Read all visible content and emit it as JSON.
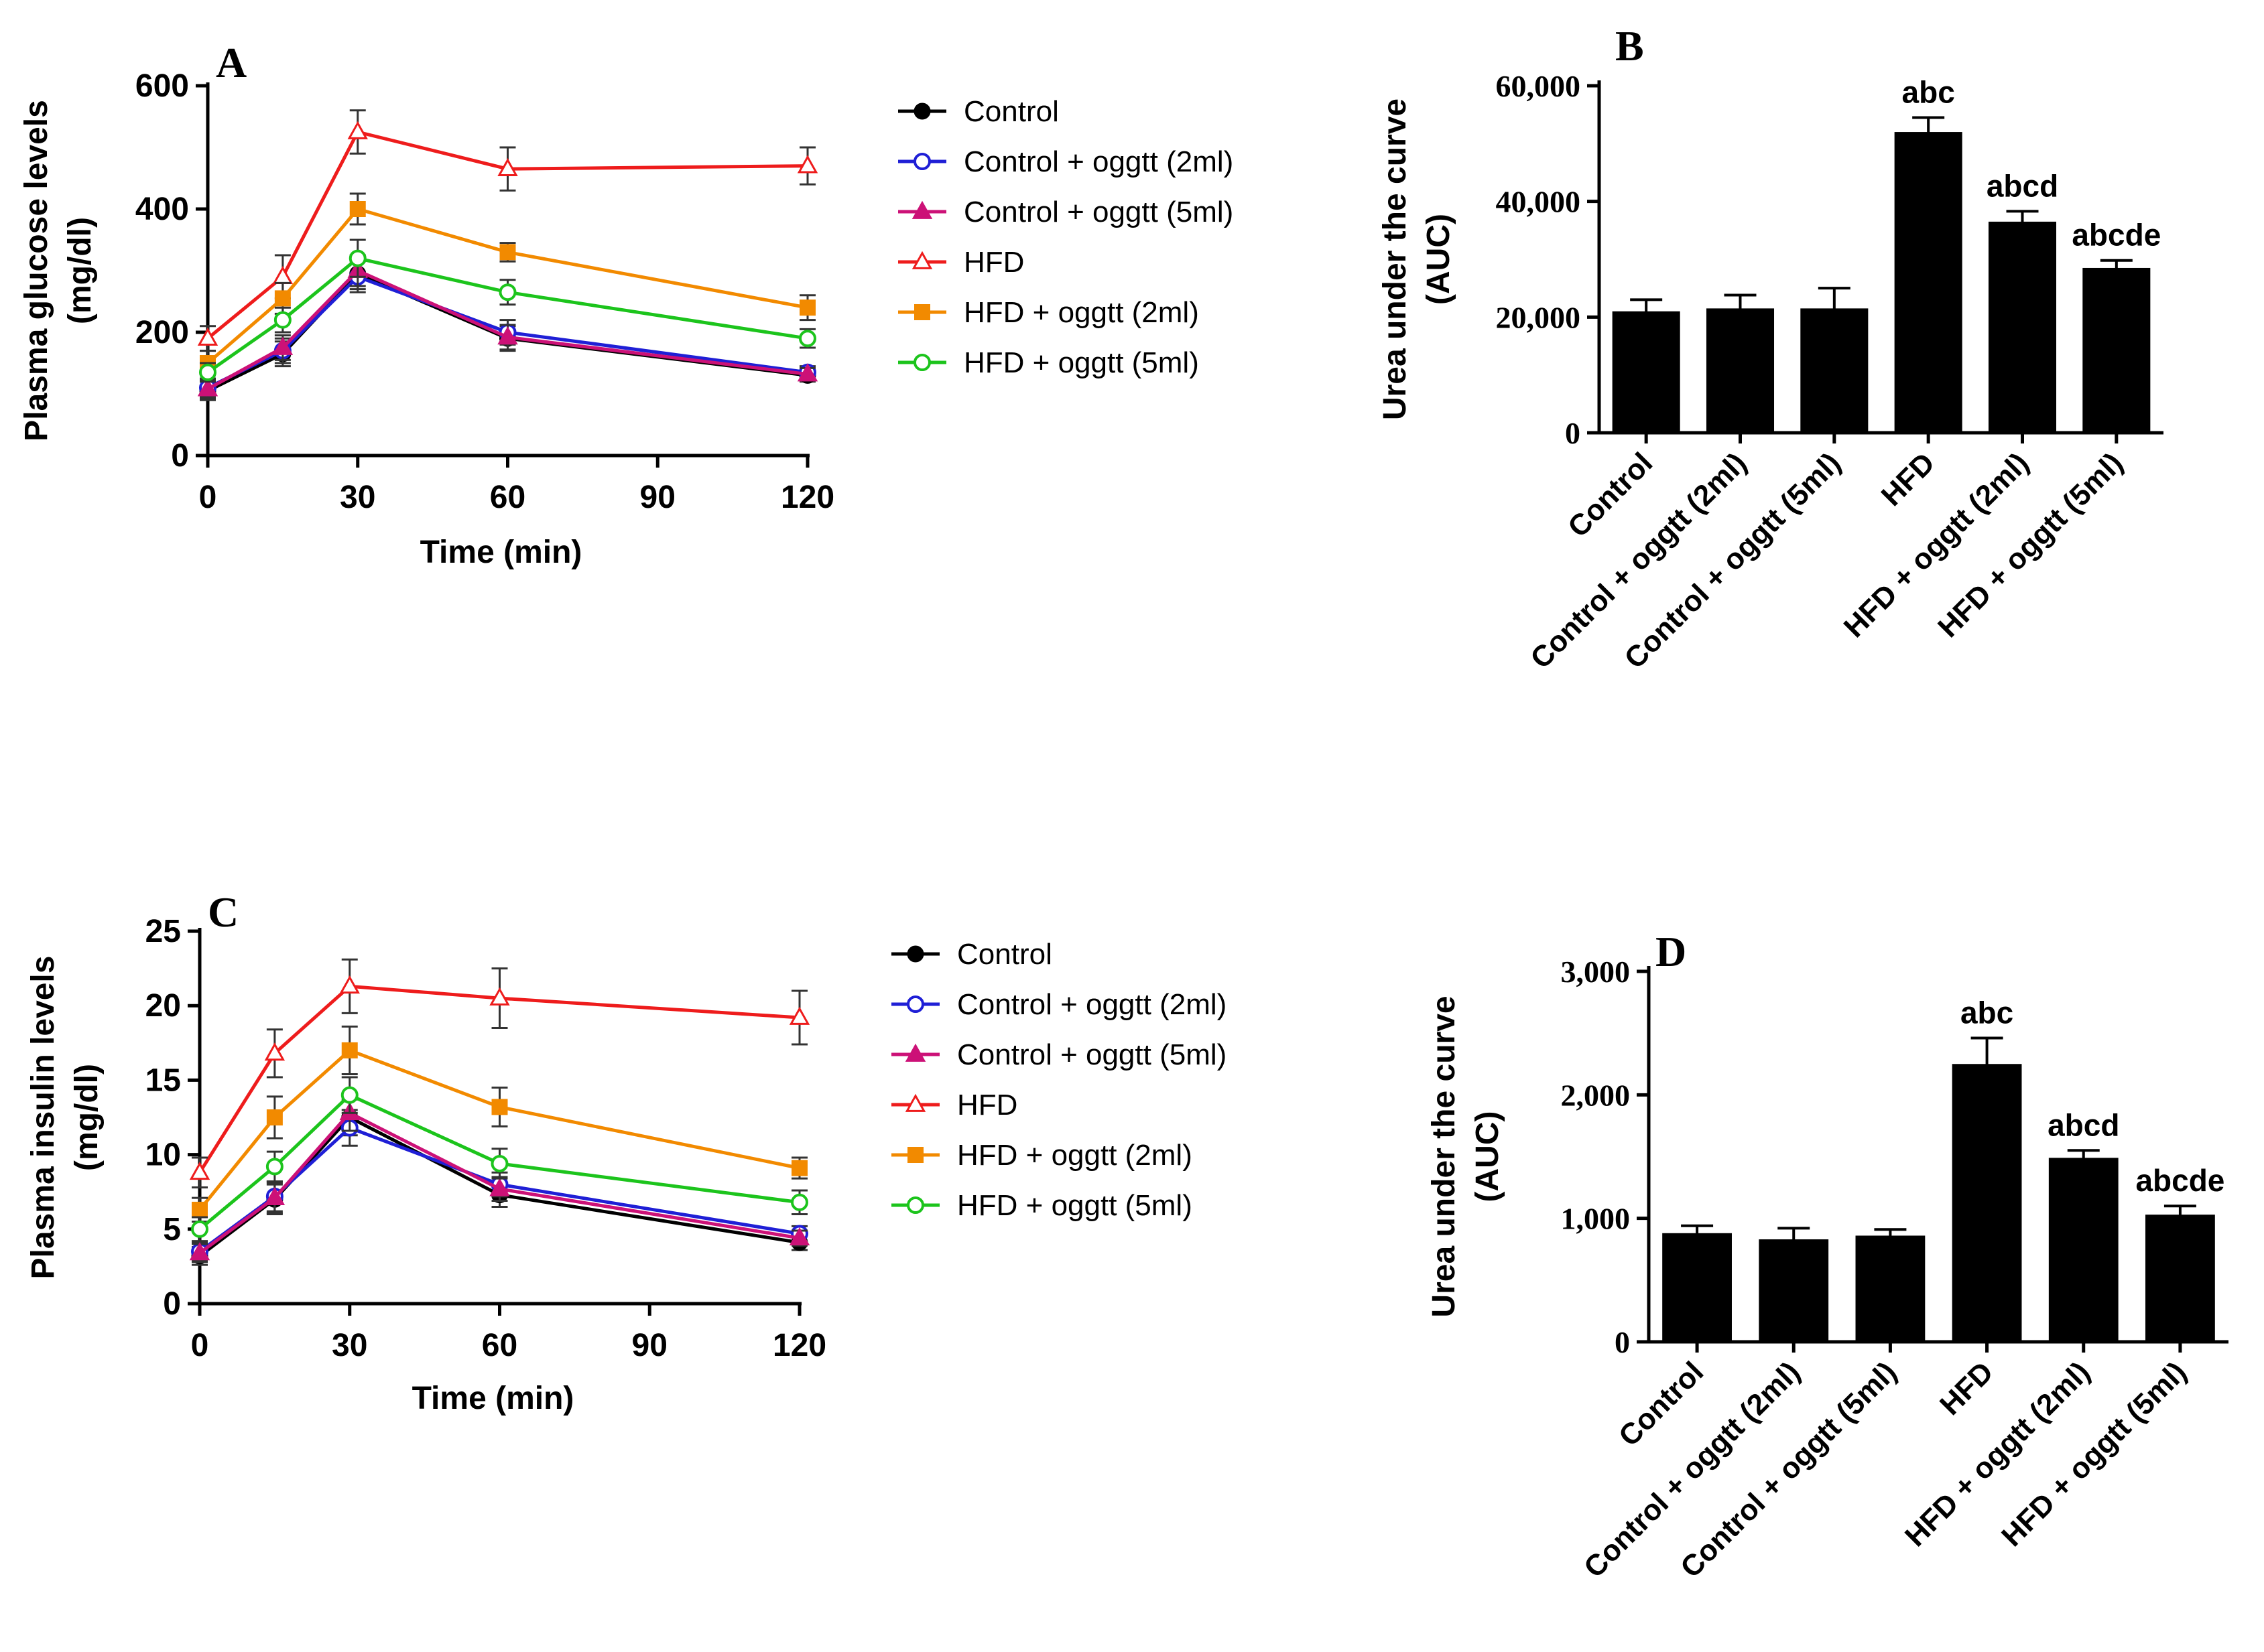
{
  "figure": {
    "background": "#ffffff"
  },
  "chart_data": [
    {
      "id": "A",
      "type": "line",
      "panel_label": "A",
      "title": "",
      "xlabel": "Time (min)",
      "ylabel_lines": [
        "Plasma  glucose levels",
        "(mg/dl)"
      ],
      "xlim": [
        0,
        120
      ],
      "ylim": [
        0,
        600
      ],
      "xticks": [
        0,
        30,
        60,
        90,
        120
      ],
      "yticks": [
        0,
        200,
        400,
        600
      ],
      "legend_position": "right",
      "x": [
        0,
        15,
        30,
        60,
        120
      ],
      "series": [
        {
          "name": "Control",
          "color": "#000000",
          "marker": "circle-filled",
          "values": [
            105,
            165,
            295,
            190,
            130
          ],
          "errors": [
            15,
            20,
            25,
            20,
            10
          ]
        },
        {
          "name": "Control + oggtt (2ml)",
          "color": "#1f1fd6",
          "marker": "circle-open",
          "values": [
            110,
            170,
            290,
            200,
            135
          ],
          "errors": [
            15,
            20,
            25,
            20,
            10
          ]
        },
        {
          "name": "Control + oggtt (5ml)",
          "color": "#cc1177",
          "marker": "triangle-filled",
          "values": [
            108,
            175,
            300,
            192,
            132
          ],
          "errors": [
            15,
            20,
            25,
            20,
            10
          ]
        },
        {
          "name": "HFD",
          "color": "#ee1c1c",
          "marker": "triangle-open",
          "values": [
            190,
            290,
            525,
            465,
            470
          ],
          "errors": [
            20,
            35,
            35,
            35,
            30
          ]
        },
        {
          "name": "HFD + oggtt (2ml)",
          "color": "#f28a00",
          "marker": "square-filled",
          "values": [
            150,
            255,
            400,
            330,
            240
          ],
          "errors": [
            20,
            25,
            25,
            15,
            20
          ]
        },
        {
          "name": "HFD + oggtt (5ml)",
          "color": "#1cc41c",
          "marker": "circle-open",
          "values": [
            135,
            220,
            320,
            265,
            190
          ],
          "errors": [
            15,
            20,
            30,
            20,
            15
          ]
        }
      ]
    },
    {
      "id": "B",
      "type": "bar",
      "panel_label": "B",
      "title": "",
      "xlabel": "",
      "ylabel_lines": [
        "Urea under the curve",
        "(AUC)"
      ],
      "ylim": [
        0,
        60000
      ],
      "yticks": [
        0,
        20000,
        40000,
        60000
      ],
      "ytick_labels": [
        "0",
        "20,000",
        "40,000",
        "60,000"
      ],
      "categories": [
        "Control",
        "Control + oggtt (2ml)",
        "Control + oggtt (5ml)",
        "HFD",
        "HFD + oggtt (2ml)",
        "HFD + oggtt (5ml)"
      ],
      "values": [
        21000,
        21500,
        21500,
        52000,
        36500,
        28500
      ],
      "errors": [
        2000,
        2300,
        3500,
        2500,
        1800,
        1300
      ],
      "annotations": [
        "",
        "",
        "",
        "abc",
        "abcd",
        "abcde"
      ],
      "bar_color": "#000000"
    },
    {
      "id": "C",
      "type": "line",
      "panel_label": "C",
      "title": "",
      "xlabel": "Time (min)",
      "ylabel_lines": [
        "Plasma insulin levels",
        "(mg/dl)"
      ],
      "xlim": [
        0,
        120
      ],
      "ylim": [
        0,
        25
      ],
      "xticks": [
        0,
        30,
        60,
        90,
        120
      ],
      "yticks": [
        0,
        5,
        10,
        15,
        20,
        25
      ],
      "legend_position": "right",
      "x": [
        0,
        15,
        30,
        60,
        120
      ],
      "series": [
        {
          "name": "Control",
          "color": "#000000",
          "marker": "circle-filled",
          "values": [
            3.2,
            7.0,
            12.5,
            7.3,
            4.1
          ],
          "errors": [
            0.6,
            1.0,
            1.2,
            0.8,
            0.5
          ]
        },
        {
          "name": "Control + oggtt (2ml)",
          "color": "#1f1fd6",
          "marker": "circle-open",
          "values": [
            3.5,
            7.2,
            11.8,
            8.0,
            4.7
          ],
          "errors": [
            0.6,
            1.0,
            1.2,
            0.8,
            0.5
          ]
        },
        {
          "name": "Control + oggtt (5ml)",
          "color": "#cc1177",
          "marker": "triangle-filled",
          "values": [
            3.4,
            7.1,
            12.8,
            7.7,
            4.4
          ],
          "errors": [
            0.6,
            1.0,
            1.2,
            0.8,
            0.5
          ]
        },
        {
          "name": "HFD",
          "color": "#ee1c1c",
          "marker": "triangle-open",
          "values": [
            8.8,
            16.8,
            21.3,
            20.5,
            19.2
          ],
          "errors": [
            1.0,
            1.6,
            1.8,
            2.0,
            1.8
          ]
        },
        {
          "name": "HFD + oggtt (2ml)",
          "color": "#f28a00",
          "marker": "square-filled",
          "values": [
            6.3,
            12.5,
            17.0,
            13.2,
            9.1
          ],
          "errors": [
            0.8,
            1.4,
            1.6,
            1.3,
            0.7
          ]
        },
        {
          "name": "HFD + oggtt (5ml)",
          "color": "#1cc41c",
          "marker": "circle-open",
          "values": [
            5.0,
            9.2,
            14.0,
            9.4,
            6.8
          ],
          "errors": [
            0.8,
            1.0,
            1.2,
            1.0,
            0.8
          ]
        }
      ]
    },
    {
      "id": "D",
      "type": "bar",
      "panel_label": "D",
      "title": "",
      "xlabel": "",
      "ylabel_lines": [
        "Urea under the curve",
        "(AUC)"
      ],
      "ylim": [
        0,
        3000
      ],
      "yticks": [
        0,
        1000,
        2000,
        3000
      ],
      "ytick_labels": [
        "0",
        "1,000",
        "2,000",
        "3,000"
      ],
      "categories": [
        "Control",
        "Control + oggtt (2ml)",
        "Control + oggtt (5ml)",
        "HFD",
        "HFD + oggtt (2ml)",
        "HFD + oggtt (5ml)"
      ],
      "values": [
        880,
        830,
        860,
        2250,
        1490,
        1030
      ],
      "errors": [
        60,
        90,
        50,
        210,
        60,
        70
      ],
      "annotations": [
        "",
        "",
        "",
        "abc",
        "abcd",
        "abcde"
      ],
      "bar_color": "#000000"
    }
  ]
}
